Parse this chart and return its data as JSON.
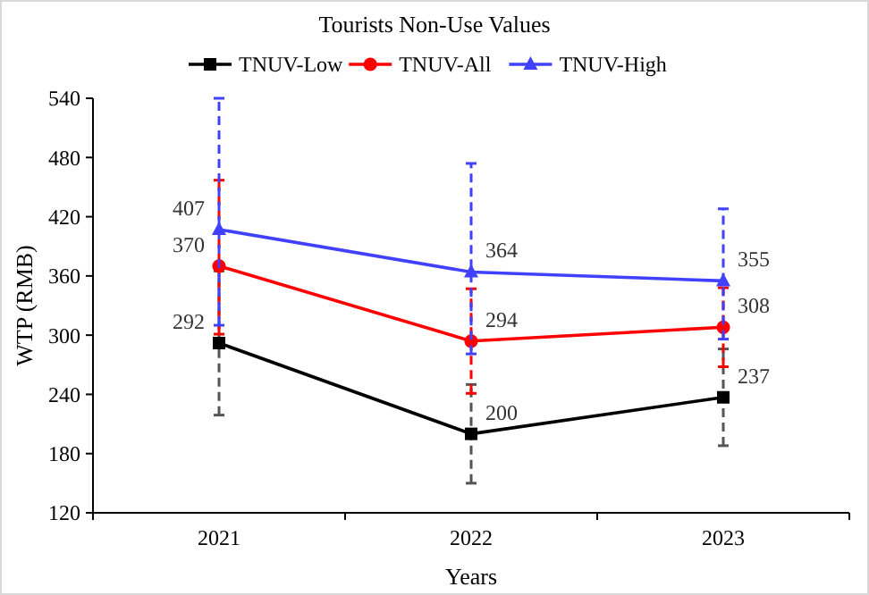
{
  "chart_data": {
    "type": "line",
    "title": "Tourists Non-Use Values",
    "xlabel": "Years",
    "ylabel": "WTP (RMB)",
    "categories": [
      "2021",
      "2022",
      "2023"
    ],
    "ylim": [
      120,
      540
    ],
    "yticks": [
      120,
      180,
      240,
      300,
      360,
      420,
      480,
      540
    ],
    "legend": "top",
    "data_labels": true,
    "grid": false,
    "line_style": "solid",
    "series": [
      {
        "name": "TNUV-Low",
        "color": "#000000",
        "marker": "square",
        "values": [
          292,
          200,
          237
        ],
        "errors": [
          [
            219,
            365
          ],
          [
            150,
            250
          ],
          [
            188,
            286
          ]
        ]
      },
      {
        "name": "TNUV-All",
        "color": "#ff0000",
        "marker": "circle",
        "values": [
          370,
          294,
          308
        ],
        "errors": [
          [
            301,
            457
          ],
          [
            241,
            347
          ],
          [
            268,
            348
          ]
        ]
      },
      {
        "name": "TNUV-High",
        "color": "#4040ff",
        "marker": "triangle",
        "values": [
          407,
          364,
          355
        ],
        "errors": [
          [
            310,
            540
          ],
          [
            281,
            474
          ],
          [
            296,
            428
          ]
        ]
      }
    ]
  }
}
